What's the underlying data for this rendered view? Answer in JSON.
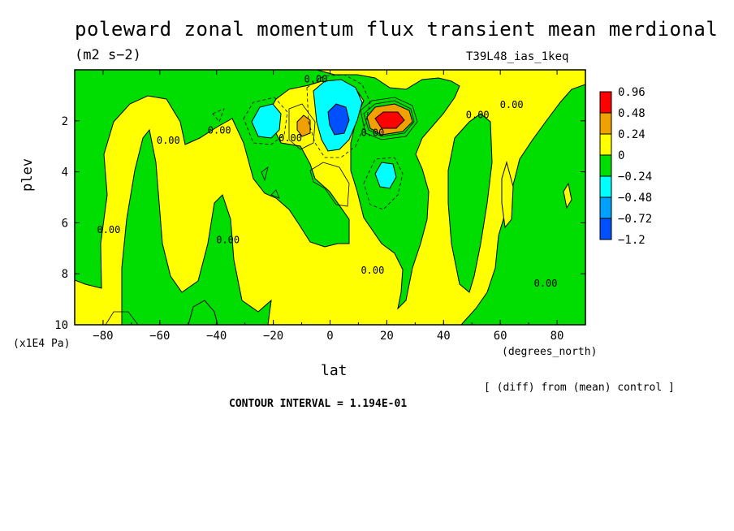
{
  "chart_data": {
    "type": "heatmap",
    "title": "poleward zonal momentum flux transient mean merdional",
    "units": "(m2 s−2)",
    "run_id": "T39L48_ias_1keq",
    "xlabel": "lat",
    "x_units": "(degrees_north)",
    "ylabel": "plev",
    "y_units": "(x1E4 Pa)",
    "xlim": [
      -90,
      90
    ],
    "ylim": [
      10,
      0
    ],
    "x_ticks": [
      "−80",
      "−60",
      "−40",
      "−20",
      "0",
      "20",
      "40",
      "60",
      "80"
    ],
    "y_ticks": [
      "2",
      "4",
      "6",
      "8",
      "10"
    ],
    "diff_note": "[ (diff) from (mean) control ]",
    "contour_interval": "CONTOUR INTERVAL = 1.194E-01",
    "colorbar": {
      "labels": [
        "0.96",
        "0.48",
        "0.24",
        "0",
        "−0.24",
        "−0.48",
        "−0.72",
        "−1.2"
      ],
      "colors": [
        "#ff0000",
        "#f0a000",
        "#ffff00",
        "#00dd00",
        "#00ffff",
        "#00a0ff",
        "#0050ff"
      ]
    },
    "contour_labels": [
      {
        "text": "0.00",
        "lat": -78,
        "plev": 6.4
      },
      {
        "text": "0.00",
        "lat": -57,
        "plev": 2.9
      },
      {
        "text": "0.00",
        "lat": -39,
        "plev": 2.5
      },
      {
        "text": "0.00",
        "lat": -36,
        "plev": 6.8
      },
      {
        "text": "0.00",
        "lat": -14,
        "plev": 2.8
      },
      {
        "text": "0.00",
        "lat": -5,
        "plev": 0.5
      },
      {
        "text": "0.00",
        "lat": 15,
        "plev": 2.6
      },
      {
        "text": "0.00",
        "lat": 15,
        "plev": 8.0
      },
      {
        "text": "0.00",
        "lat": 52,
        "plev": 1.9
      },
      {
        "text": "0.00",
        "lat": 64,
        "plev": 1.5
      },
      {
        "text": "0.00",
        "lat": 76,
        "plev": 8.5
      }
    ]
  }
}
